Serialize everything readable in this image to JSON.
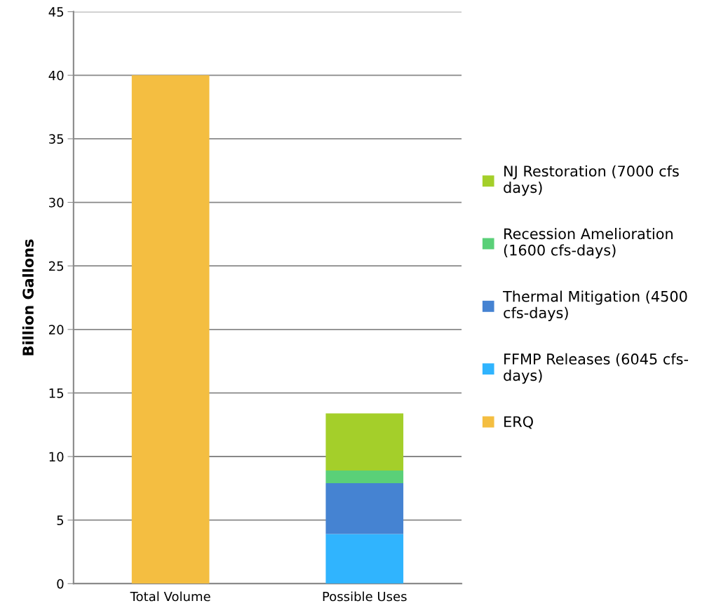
{
  "chart_data": {
    "type": "bar",
    "stacked": true,
    "ylabel": "Billion Gallons",
    "categories": [
      "Total Volume",
      "Possible Uses"
    ],
    "series": [
      {
        "name": "ERQ",
        "color": "#f4be41",
        "values": [
          40,
          null
        ]
      },
      {
        "name": "FFMP Releases (6045 cfs-\ndays)",
        "color": "#30b4fe",
        "values": [
          null,
          3.9
        ]
      },
      {
        "name": "Thermal Mitigation (4500\ncfs-days)",
        "color": "#4583d2",
        "values": [
          null,
          4.0
        ]
      },
      {
        "name": "Recession Amelioration\n(1600 cfs-days)",
        "color": "#5ad078",
        "values": [
          null,
          1.0
        ]
      },
      {
        "name": "NJ Restoration (7000 cfs\ndays)",
        "color": "#a4cf2a",
        "values": [
          null,
          4.5
        ]
      }
    ],
    "ylim": [
      0,
      45
    ],
    "yticks": [
      0,
      5,
      10,
      15,
      20,
      25,
      30,
      35,
      40,
      45
    ],
    "grid": "y",
    "legend": "right"
  }
}
